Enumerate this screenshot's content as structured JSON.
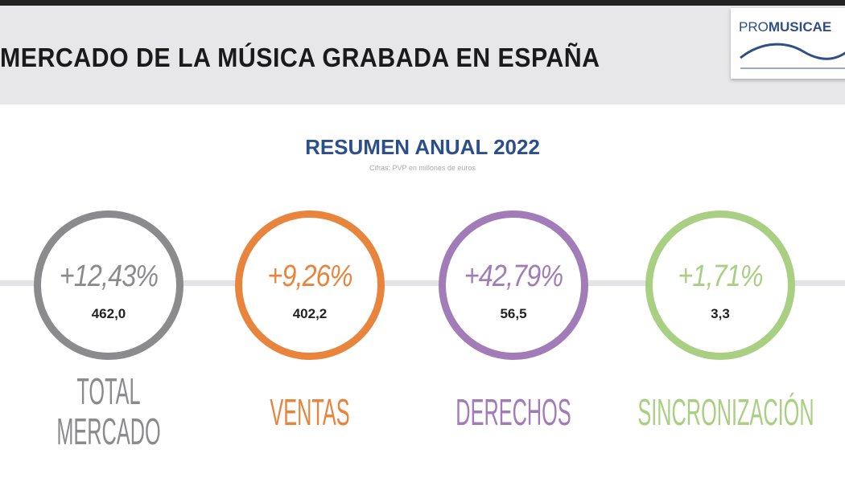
{
  "header": {
    "title": "MERCADO DE LA MÚSICA GRABADA EN ESPAÑA",
    "logo": {
      "prefix": "PRO",
      "name": "MUSICAE"
    }
  },
  "summary": {
    "heading": "RESUMEN ANUAL 2022",
    "subtitle": "Cifras: PVP en millones de euros"
  },
  "metrics": [
    {
      "label_line1": "TOTAL",
      "label_line2": "MERCADO",
      "change": "+12,43%",
      "value": "462,0",
      "color": "#8b8b8e"
    },
    {
      "label_line1": "VENTAS",
      "change": "+9,26%",
      "value": "402,2",
      "color": "#e8843c"
    },
    {
      "label_line1": "DERECHOS",
      "change": "+42,79%",
      "value": "56,5",
      "color": "#a27cb8"
    },
    {
      "label_line1": "SINCRONIZACIÓN",
      "change": "+1,71%",
      "value": "3,3",
      "color": "#a8cf82"
    }
  ]
}
